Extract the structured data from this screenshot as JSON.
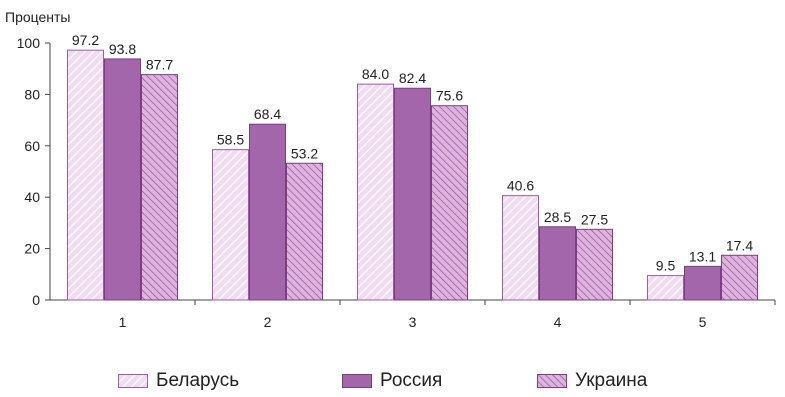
{
  "chart_data": {
    "type": "bar",
    "ylabel": "Проценты",
    "ylim": [
      0,
      100
    ],
    "yticks": [
      "0",
      "20",
      "40",
      "60",
      "80",
      "100"
    ],
    "categories": [
      "1",
      "2",
      "3",
      "4",
      "5"
    ],
    "series": [
      {
        "name": "Беларусь",
        "values": [
          97.2,
          58.5,
          84.0,
          40.6,
          9.5
        ],
        "labels": [
          "97.2",
          "58.5",
          "84.0",
          "40.6",
          "9.5"
        ],
        "pattern": "light-diagonal",
        "color": "#e8cde8",
        "stroke": "#a05aa8"
      },
      {
        "name": "Россия",
        "values": [
          93.8,
          68.4,
          82.4,
          28.5,
          13.1
        ],
        "labels": [
          "93.8",
          "68.4",
          "82.4",
          "28.5",
          "13.1"
        ],
        "pattern": "solid",
        "color": "#a466aa",
        "stroke": "#7d3d85"
      },
      {
        "name": "Украина",
        "values": [
          87.7,
          53.2,
          75.6,
          27.5,
          17.4
        ],
        "labels": [
          "87.7",
          "53.2",
          "75.6",
          "27.5",
          "17.4"
        ],
        "pattern": "dark-diagonal",
        "color": "#d6a6d6",
        "stroke": "#7d3d85"
      }
    ],
    "grid": false,
    "legend_position": "bottom"
  }
}
